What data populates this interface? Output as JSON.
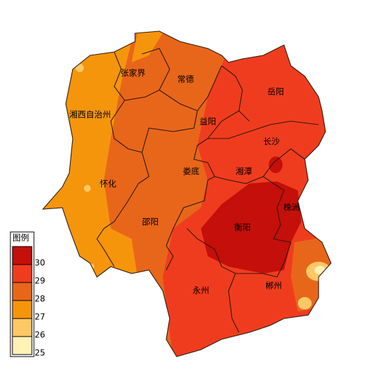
{
  "legend": {
    "title": "图例",
    "ticks": [
      30,
      29,
      28,
      27,
      26,
      25
    ],
    "colors": [
      "#c40f0a",
      "#f03c1e",
      "#e8661a",
      "#f5950c",
      "#ffc866",
      "#fff2b6"
    ]
  },
  "labels": [
    "张家界",
    "常德",
    "岳阳",
    "湘西自治州",
    "益阳",
    "长沙",
    "怀化",
    "娄底",
    "湘潭",
    "株洲",
    "邵阳",
    "衡阳",
    "永州",
    "郴州"
  ]
}
